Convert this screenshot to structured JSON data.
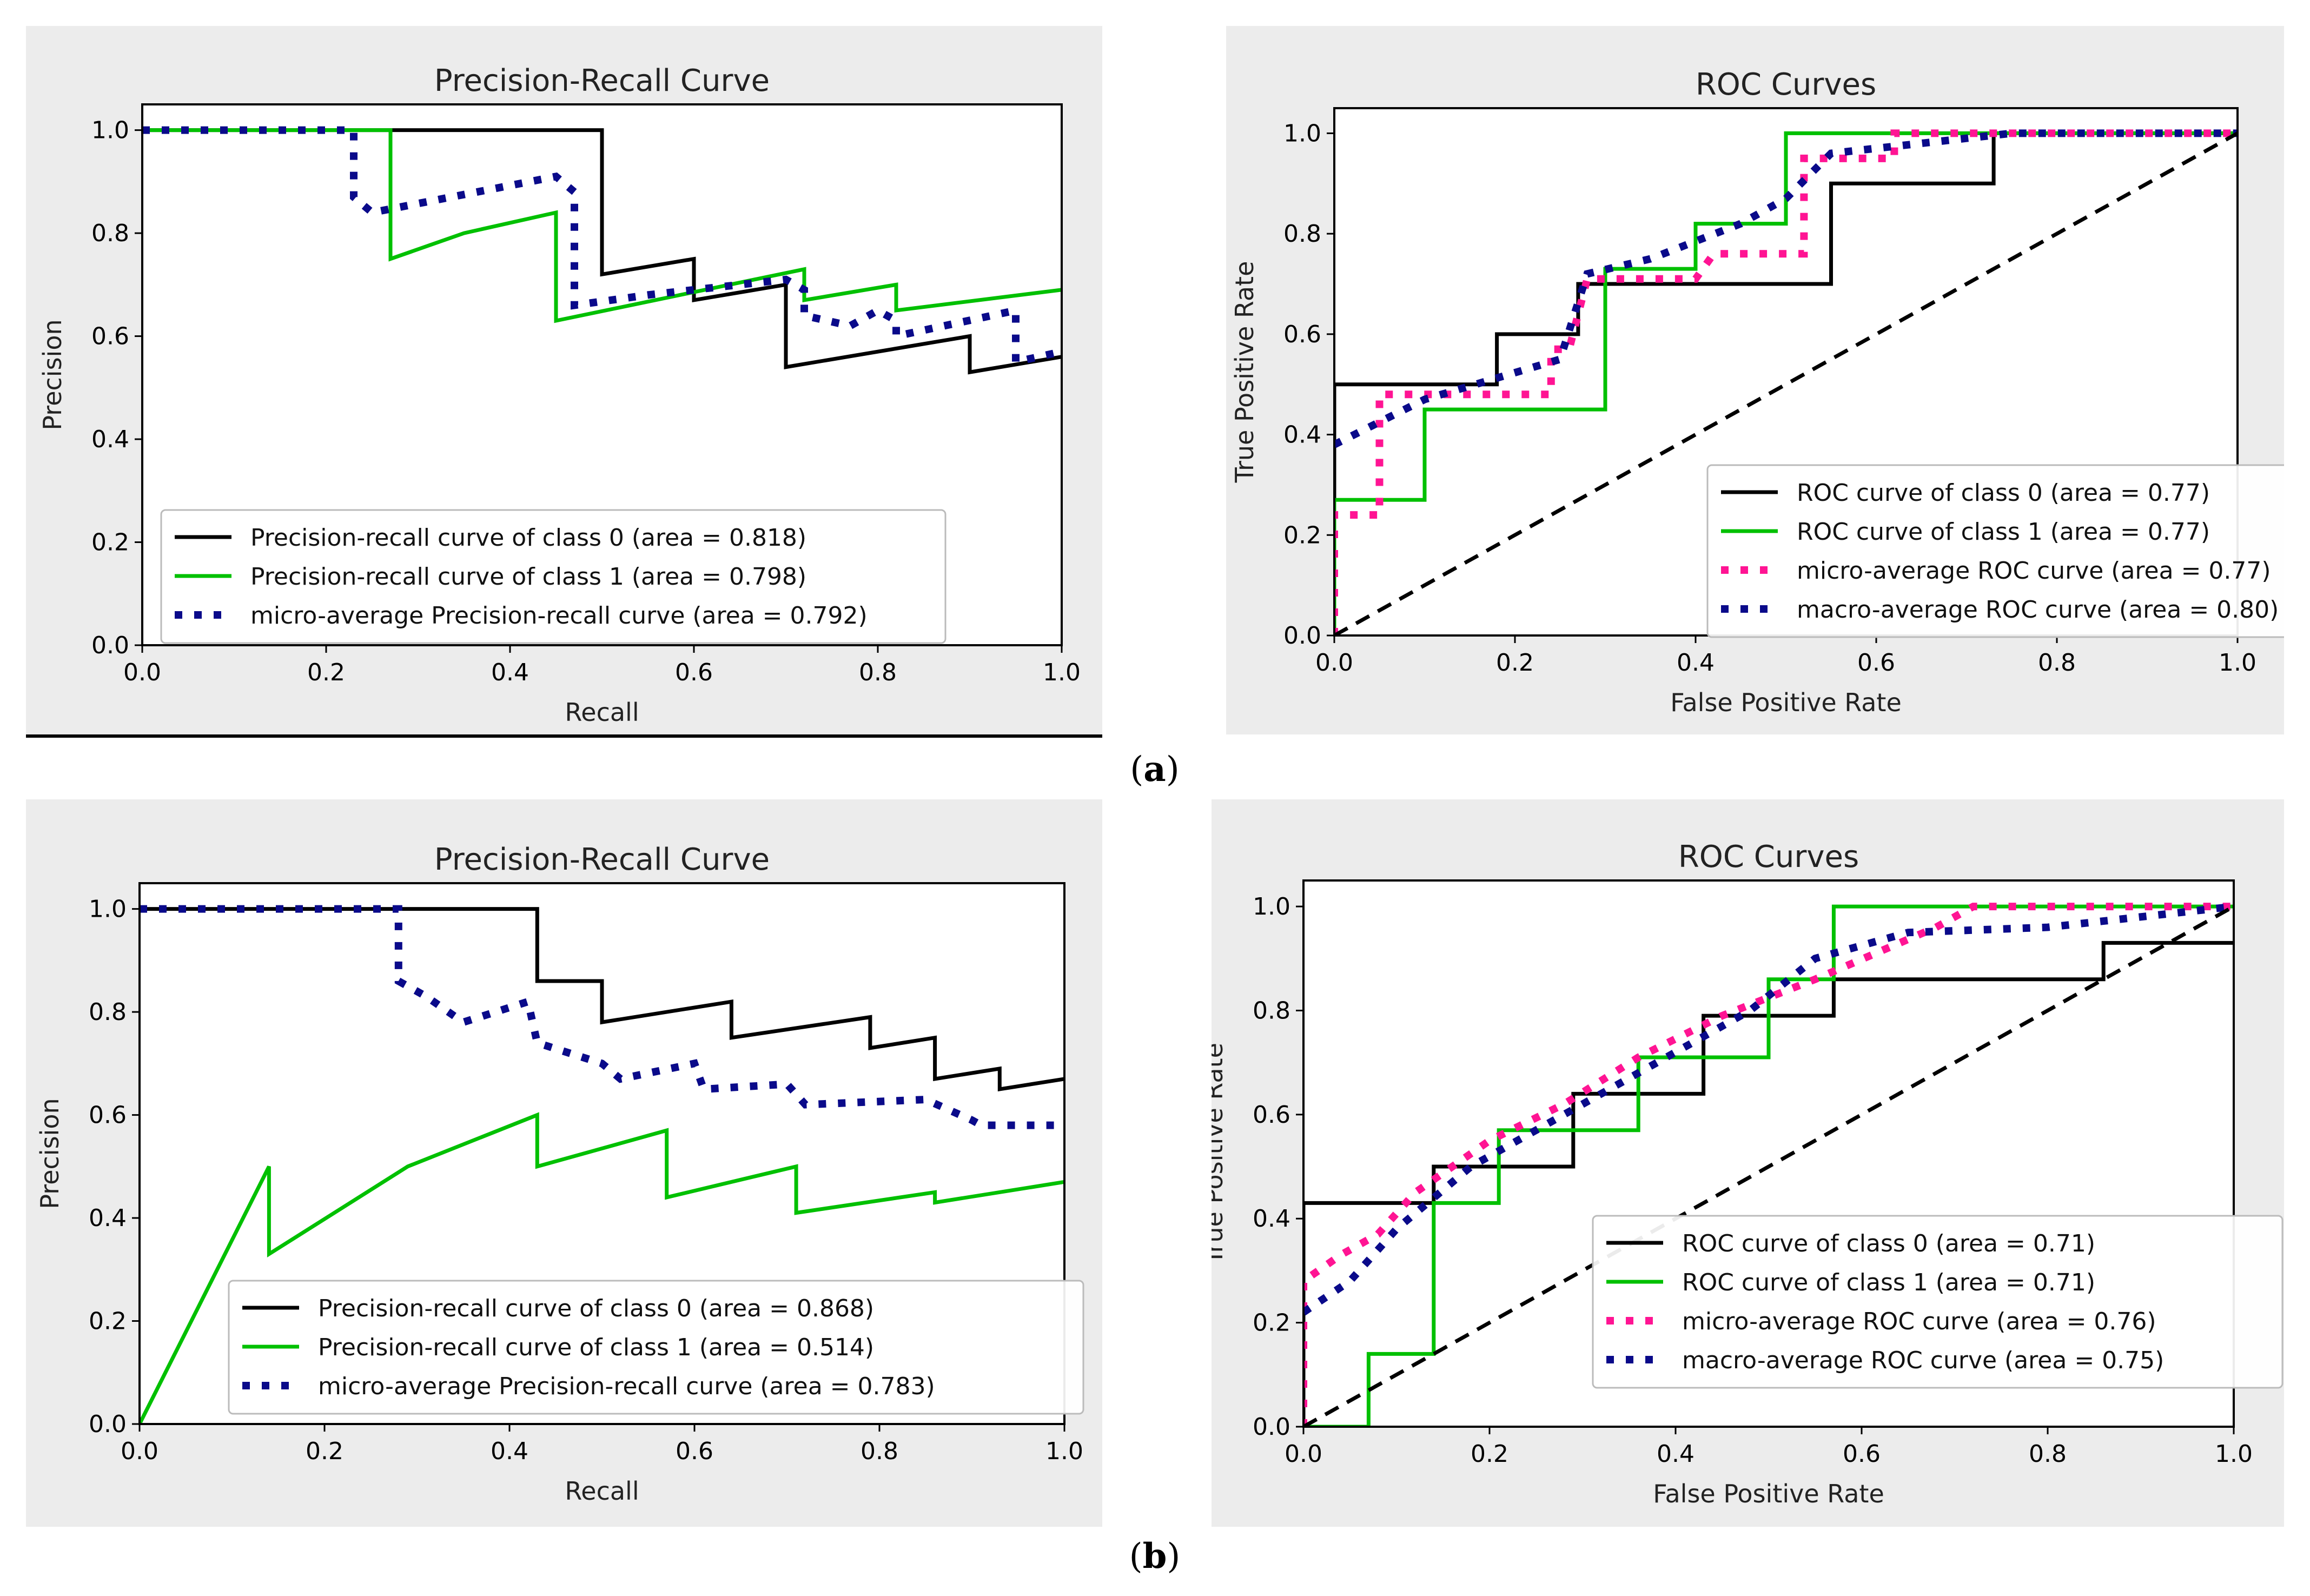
{
  "captions": {
    "a": "a",
    "b": "b"
  },
  "colors": {
    "class0": "#000000",
    "class1": "#00c000",
    "micro": "#ff1493",
    "macro": "#0a0a8a",
    "diag": "#000000"
  },
  "chart_data": [
    {
      "id": "pr-a",
      "type": "line",
      "title": "Precision-Recall Curve",
      "xlabel": "Recall",
      "ylabel": "Precision",
      "xlim": [
        0,
        1
      ],
      "ylim": [
        0,
        1.05
      ],
      "xticks": [
        0.0,
        0.2,
        0.4,
        0.6,
        0.8,
        1.0
      ],
      "yticks": [
        0.0,
        0.2,
        0.4,
        0.6,
        0.8,
        1.0
      ],
      "tick_labels_x": [
        "0.0",
        "0.2",
        "0.4",
        "0.6",
        "0.8",
        "1.0"
      ],
      "tick_labels_y": [
        "0.0",
        "0.2",
        "0.4",
        "0.6",
        "0.8",
        "1.0"
      ],
      "legend_position": "lower-left",
      "series": [
        {
          "name": "Precision-recall curve of class 0 (area = 0.818)",
          "color": "#000000",
          "dash": "solid",
          "x": [
            0,
            0.5,
            0.5,
            0.6,
            0.6,
            0.7,
            0.7,
            0.9,
            0.9,
            1.0
          ],
          "y": [
            1.0,
            1.0,
            0.72,
            0.75,
            0.67,
            0.7,
            0.54,
            0.6,
            0.53,
            0.56
          ]
        },
        {
          "name": "Precision-recall curve of class 1 (area = 0.798)",
          "color": "#00c000",
          "dash": "solid",
          "x": [
            0,
            0.27,
            0.27,
            0.35,
            0.45,
            0.45,
            0.72,
            0.72,
            0.82,
            0.82,
            1.0
          ],
          "y": [
            1.0,
            1.0,
            0.75,
            0.8,
            0.84,
            0.63,
            0.73,
            0.67,
            0.7,
            0.65,
            0.69
          ]
        },
        {
          "name": "micro-average Precision-recall curve (area = 0.792)",
          "color": "#0a0a8a",
          "dash": "dot",
          "x": [
            0,
            0.23,
            0.23,
            0.25,
            0.45,
            0.47,
            0.47,
            0.55,
            0.7,
            0.72,
            0.72,
            0.77,
            0.8,
            0.82,
            0.82,
            0.95,
            0.95,
            1.0
          ],
          "y": [
            1.0,
            1.0,
            0.87,
            0.84,
            0.91,
            0.88,
            0.66,
            0.68,
            0.71,
            0.69,
            0.64,
            0.62,
            0.65,
            0.63,
            0.6,
            0.65,
            0.55,
            0.57
          ]
        }
      ]
    },
    {
      "id": "roc-a",
      "type": "line",
      "title": "ROC Curves",
      "xlabel": "False Positive Rate",
      "ylabel": "True Positive Rate",
      "xlim": [
        0,
        1
      ],
      "ylim": [
        0,
        1.05
      ],
      "xticks": [
        0.0,
        0.2,
        0.4,
        0.6,
        0.8,
        1.0
      ],
      "yticks": [
        0.0,
        0.2,
        0.4,
        0.6,
        0.8,
        1.0
      ],
      "tick_labels_x": [
        "0.0",
        "0.2",
        "0.4",
        "0.6",
        "0.8",
        "1.0"
      ],
      "tick_labels_y": [
        "0.0",
        "0.2",
        "0.4",
        "0.6",
        "0.8",
        "1.0"
      ],
      "legend_position": "lower-right",
      "series": [
        {
          "name": "ROC curve of class 0 (area = 0.77)",
          "color": "#000000",
          "dash": "solid",
          "x": [
            0,
            0,
            0.18,
            0.18,
            0.27,
            0.27,
            0.55,
            0.55,
            0.73,
            0.73,
            1.0
          ],
          "y": [
            0,
            0.5,
            0.5,
            0.6,
            0.6,
            0.7,
            0.7,
            0.9,
            0.9,
            1.0,
            1.0
          ]
        },
        {
          "name": "ROC curve of class 1 (area = 0.77)",
          "color": "#00c000",
          "dash": "solid",
          "x": [
            0,
            0,
            0.1,
            0.1,
            0.3,
            0.3,
            0.4,
            0.4,
            0.5,
            0.5,
            1.0
          ],
          "y": [
            0,
            0.27,
            0.27,
            0.45,
            0.45,
            0.73,
            0.73,
            0.82,
            0.82,
            1.0,
            1.0
          ]
        },
        {
          "name": "micro-average ROC curve (area = 0.77)",
          "color": "#ff1493",
          "dash": "dot",
          "x": [
            0,
            0,
            0.05,
            0.05,
            0.1,
            0.2,
            0.24,
            0.24,
            0.26,
            0.28,
            0.4,
            0.42,
            0.52,
            0.52,
            0.62,
            0.62,
            0.72,
            1.0
          ],
          "y": [
            0,
            0.24,
            0.24,
            0.48,
            0.48,
            0.48,
            0.48,
            0.57,
            0.57,
            0.71,
            0.71,
            0.76,
            0.76,
            0.95,
            0.95,
            1.0,
            1.0,
            1.0
          ]
        },
        {
          "name": "macro-average ROC curve (area = 0.80)",
          "color": "#0a0a8a",
          "dash": "dot",
          "x": [
            0,
            0.1,
            0.25,
            0.28,
            0.35,
            0.45,
            0.5,
            0.55,
            0.65,
            0.75,
            1.0
          ],
          "y": [
            0.38,
            0.47,
            0.55,
            0.72,
            0.75,
            0.82,
            0.87,
            0.96,
            0.98,
            1.0,
            1.0
          ]
        },
        {
          "name": "chance",
          "legend": false,
          "color": "#000000",
          "dash": "dash",
          "x": [
            0,
            1
          ],
          "y": [
            0,
            1
          ]
        }
      ]
    },
    {
      "id": "pr-b",
      "type": "line",
      "title": "Precision-Recall Curve",
      "xlabel": "Recall",
      "ylabel": "Precision",
      "xlim": [
        0,
        1
      ],
      "ylim": [
        0,
        1.05
      ],
      "xticks": [
        0.0,
        0.2,
        0.4,
        0.6,
        0.8,
        1.0
      ],
      "yticks": [
        0.0,
        0.2,
        0.4,
        0.6,
        0.8,
        1.0
      ],
      "tick_labels_x": [
        "0.0",
        "0.2",
        "0.4",
        "0.6",
        "0.8",
        "1.0"
      ],
      "tick_labels_y": [
        "0.0",
        "0.2",
        "0.4",
        "0.6",
        "0.8",
        "1.0"
      ],
      "legend_position": "lower-right",
      "series": [
        {
          "name": "Precision-recall curve of class 0 (area = 0.868)",
          "color": "#000000",
          "dash": "solid",
          "x": [
            0,
            0.43,
            0.43,
            0.5,
            0.5,
            0.64,
            0.64,
            0.79,
            0.79,
            0.86,
            0.86,
            0.93,
            0.93,
            1.0
          ],
          "y": [
            1.0,
            1.0,
            0.86,
            0.86,
            0.78,
            0.82,
            0.75,
            0.79,
            0.73,
            0.75,
            0.67,
            0.69,
            0.65,
            0.67
          ]
        },
        {
          "name": "Precision-recall curve of class 1 (area = 0.514)",
          "color": "#00c000",
          "dash": "solid",
          "x": [
            0,
            0.14,
            0.14,
            0.29,
            0.43,
            0.43,
            0.57,
            0.57,
            0.71,
            0.71,
            0.86,
            0.86,
            1.0
          ],
          "y": [
            0,
            0.5,
            0.33,
            0.5,
            0.6,
            0.5,
            0.57,
            0.44,
            0.5,
            0.41,
            0.45,
            0.43,
            0.47
          ]
        },
        {
          "name": "micro-average Precision-recall curve (area = 0.783)",
          "color": "#0a0a8a",
          "dash": "dot",
          "x": [
            0,
            0.28,
            0.28,
            0.31,
            0.35,
            0.42,
            0.43,
            0.5,
            0.52,
            0.6,
            0.61,
            0.7,
            0.72,
            0.85,
            0.9,
            0.91,
            1.0
          ],
          "y": [
            1.0,
            1.0,
            0.86,
            0.83,
            0.78,
            0.82,
            0.74,
            0.7,
            0.67,
            0.7,
            0.65,
            0.66,
            0.62,
            0.63,
            0.59,
            0.58,
            0.58
          ]
        }
      ]
    },
    {
      "id": "roc-b",
      "type": "line",
      "title": "ROC Curves",
      "xlabel": "False Positive Rate",
      "ylabel": "True Positive Rate",
      "xlim": [
        0,
        1
      ],
      "ylim": [
        0,
        1.05
      ],
      "xticks": [
        0.0,
        0.2,
        0.4,
        0.6,
        0.8,
        1.0
      ],
      "yticks": [
        0.0,
        0.2,
        0.4,
        0.6,
        0.8,
        1.0
      ],
      "tick_labels_x": [
        "0.0",
        "0.2",
        "0.4",
        "0.6",
        "0.8",
        "1.0"
      ],
      "tick_labels_y": [
        "0.0",
        "0.2",
        "0.4",
        "0.6",
        "0.8",
        "1.0"
      ],
      "legend_position": "lower-right",
      "series": [
        {
          "name": "ROC curve of class 0 (area = 0.71)",
          "color": "#000000",
          "dash": "solid",
          "x": [
            0,
            0,
            0.14,
            0.14,
            0.29,
            0.29,
            0.43,
            0.43,
            0.57,
            0.57,
            0.86,
            0.86,
            1.0
          ],
          "y": [
            0,
            0.43,
            0.43,
            0.5,
            0.5,
            0.64,
            0.64,
            0.79,
            0.79,
            0.86,
            0.86,
            0.93,
            0.93
          ]
        },
        {
          "name": "ROC curve of class 1 (area = 0.71)",
          "color": "#00c000",
          "dash": "solid",
          "x": [
            0,
            0.07,
            0.07,
            0.14,
            0.14,
            0.21,
            0.21,
            0.36,
            0.36,
            0.5,
            0.5,
            0.57,
            0.57,
            1.0
          ],
          "y": [
            0,
            0,
            0.14,
            0.14,
            0.43,
            0.43,
            0.57,
            0.57,
            0.71,
            0.71,
            0.86,
            0.86,
            1.0,
            1.0
          ]
        },
        {
          "name": "micro-average ROC curve (area = 0.76)",
          "color": "#ff1493",
          "dash": "dot",
          "x": [
            0,
            0,
            0.04,
            0.08,
            0.12,
            0.2,
            0.28,
            0.36,
            0.45,
            0.55,
            0.68,
            0.72,
            1.0
          ],
          "y": [
            0,
            0.28,
            0.33,
            0.37,
            0.45,
            0.55,
            0.62,
            0.71,
            0.79,
            0.86,
            0.96,
            1.0,
            1.0
          ]
        },
        {
          "name": "macro-average ROC curve (area = 0.75)",
          "color": "#0a0a8a",
          "dash": "dot",
          "x": [
            0,
            0.05,
            0.1,
            0.18,
            0.28,
            0.38,
            0.48,
            0.55,
            0.65,
            0.8,
            0.9,
            1.0
          ],
          "y": [
            0.22,
            0.28,
            0.38,
            0.5,
            0.6,
            0.7,
            0.8,
            0.9,
            0.95,
            0.96,
            0.98,
            1.0
          ]
        },
        {
          "name": "chance",
          "legend": false,
          "color": "#000000",
          "dash": "dash",
          "x": [
            0,
            1
          ],
          "y": [
            0,
            1
          ]
        }
      ]
    }
  ]
}
